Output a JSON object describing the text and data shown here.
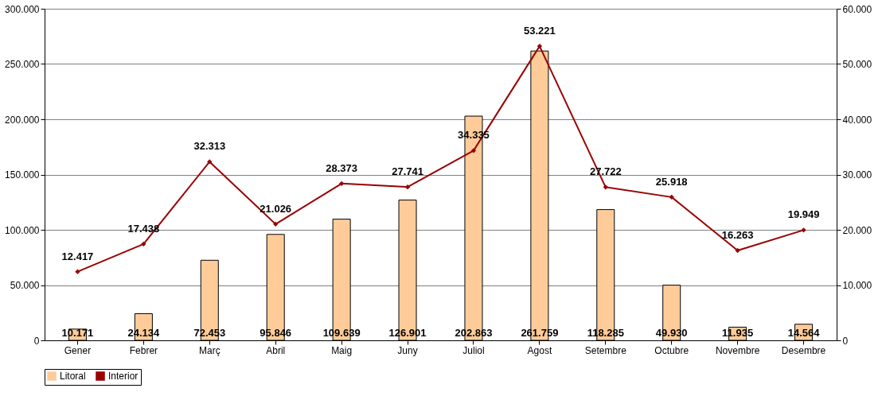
{
  "chart_data": {
    "type": "bar",
    "categories": [
      "Gener",
      "Febrer",
      "Març",
      "Abril",
      "Maig",
      "Juny",
      "Juliol",
      "Agost",
      "Setembre",
      "Octubre",
      "Novembre",
      "Desembre"
    ],
    "series": [
      {
        "name": "Litoral",
        "color": "#ffcc99",
        "values": [
          10171,
          24134,
          72453,
          95846,
          109639,
          126901,
          202863,
          261759,
          118285,
          49930,
          11935,
          14564
        ],
        "value_labels": [
          "10.171",
          "24.134",
          "72.453",
          "95.846",
          "109.639",
          "126.901",
          "202.863",
          "261.759",
          "118.285",
          "49.930",
          "11.935",
          "14.564"
        ]
      },
      {
        "name": "Interior",
        "type": "line",
        "axis": "y2",
        "color": "#990000",
        "values": [
          12417,
          17438,
          32313,
          21026,
          28373,
          27741,
          34335,
          53221,
          27722,
          25918,
          16263,
          19949
        ],
        "value_labels": [
          "12.417",
          "17.438",
          "32.313",
          "21.026",
          "28.373",
          "27.741",
          "34.335",
          "53.221",
          "27.722",
          "25.918",
          "16.263",
          "19.949"
        ]
      }
    ],
    "ylim": [
      0,
      300000
    ],
    "yticks": [
      {
        "value": 0,
        "label": "0"
      },
      {
        "value": 50000,
        "label": "50.000"
      },
      {
        "value": 100000,
        "label": "100.000"
      },
      {
        "value": 150000,
        "label": "150.000"
      },
      {
        "value": 200000,
        "label": "200.000"
      },
      {
        "value": 250000,
        "label": "250.000"
      },
      {
        "value": 300000,
        "label": "300.000"
      }
    ],
    "y2lim": [
      0,
      60000
    ],
    "y2ticks": [
      {
        "value": 0,
        "label": "0"
      },
      {
        "value": 10000,
        "label": "10.000"
      },
      {
        "value": 20000,
        "label": "20.000"
      },
      {
        "value": 30000,
        "label": "30.000"
      },
      {
        "value": 40000,
        "label": "40.000"
      },
      {
        "value": 50000,
        "label": "50.000"
      },
      {
        "value": 60000,
        "label": "60.000"
      }
    ],
    "grid": "y",
    "legend": "bottom",
    "marker": "diamond"
  }
}
